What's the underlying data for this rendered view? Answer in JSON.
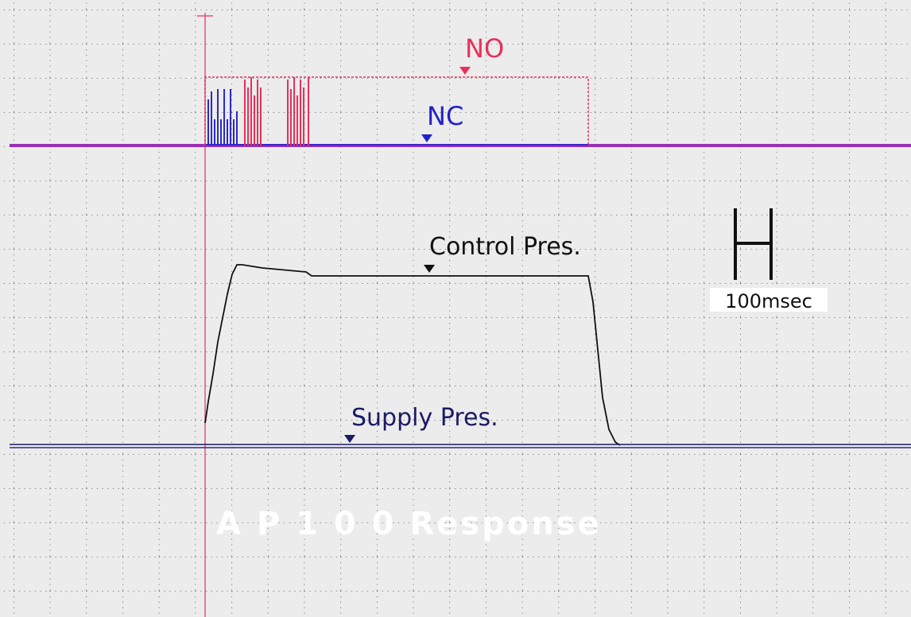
{
  "labels": {
    "no": "NO",
    "nc": "NC",
    "control": "Control Pres.",
    "supply": "Supply Pres.",
    "scale": "100msec"
  },
  "title": "A P 1 0 0 Response"
}
